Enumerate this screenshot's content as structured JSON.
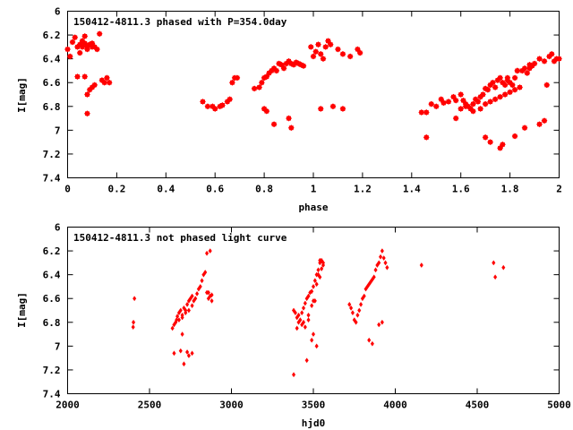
{
  "colors": {
    "points": "#ff0000",
    "frame": "#000000"
  },
  "chart_data": [
    {
      "type": "scatter",
      "title": "150412-4811.3 phased with P=354.0day",
      "xlabel": "phase",
      "ylabel": "I[mag]",
      "xlim": [
        0,
        2
      ],
      "ylim": [
        6,
        7.4
      ],
      "y_inverted": true,
      "marker": "star",
      "xticks": [
        "0",
        "0.2",
        "0.4",
        "0.6",
        "0.8",
        "1",
        "1.2",
        "1.4",
        "1.6",
        "1.8",
        "2"
      ],
      "yticks": [
        "6",
        "6.2",
        "6.4",
        "6.6",
        "6.8",
        "7",
        "7.2",
        "7.4"
      ],
      "series": [
        {
          "x": [
            0.0,
            0.01,
            0.02,
            0.03,
            0.04,
            0.05,
            0.05,
            0.06,
            0.06,
            0.07,
            0.07,
            0.08,
            0.08,
            0.09,
            0.1,
            0.1,
            0.11,
            0.12,
            0.13,
            0.14,
            0.15,
            0.16,
            0.17,
            0.08,
            0.09,
            0.1,
            0.11,
            0.04,
            0.07,
            0.08,
            0.55,
            0.57,
            0.59,
            0.6,
            0.62,
            0.63,
            0.65,
            0.66,
            0.67,
            0.68,
            0.69,
            0.76,
            0.78,
            0.79,
            0.8,
            0.81,
            0.82,
            0.83,
            0.84,
            0.85,
            0.86,
            0.87,
            0.88,
            0.89,
            0.9,
            0.91,
            0.92,
            0.93,
            0.94,
            0.95,
            0.96,
            0.8,
            0.81,
            0.84,
            0.9,
            0.91,
            0.99,
            1.0,
            1.01,
            1.02,
            1.03,
            1.04,
            1.05,
            1.06,
            1.07,
            1.1,
            1.12,
            1.15,
            1.18,
            1.19,
            1.03,
            1.08,
            1.12,
            1.44,
            1.46,
            1.48,
            1.5,
            1.52,
            1.53,
            1.55,
            1.57,
            1.58,
            1.6,
            1.61,
            1.62,
            1.63,
            1.64,
            1.65,
            1.66,
            1.67,
            1.68,
            1.69,
            1.7,
            1.71,
            1.72,
            1.73,
            1.74,
            1.75,
            1.76,
            1.77,
            1.78,
            1.79,
            1.8,
            1.81,
            1.82,
            1.83,
            1.85,
            1.86,
            1.87,
            1.88,
            1.89,
            1.9,
            1.92,
            1.94,
            1.96,
            1.97,
            1.98,
            1.99,
            2.0,
            1.6,
            1.62,
            1.65,
            1.68,
            1.7,
            1.72,
            1.74,
            1.76,
            1.78,
            1.8,
            1.82,
            1.84,
            1.46,
            1.58,
            1.7,
            1.72,
            1.76,
            1.77,
            1.82,
            1.86,
            1.92,
            1.94,
            1.95,
            1.79,
            1.83,
            1.88
          ],
          "y": [
            6.32,
            6.38,
            6.26,
            6.22,
            6.3,
            6.35,
            6.28,
            6.3,
            6.25,
            6.27,
            6.21,
            6.3,
            6.32,
            6.28,
            6.3,
            6.27,
            6.3,
            6.32,
            6.19,
            6.58,
            6.6,
            6.56,
            6.6,
            6.7,
            6.66,
            6.64,
            6.62,
            6.55,
            6.55,
            6.86,
            6.76,
            6.8,
            6.8,
            6.82,
            6.8,
            6.79,
            6.76,
            6.74,
            6.6,
            6.56,
            6.56,
            6.65,
            6.64,
            6.6,
            6.56,
            6.55,
            6.52,
            6.5,
            6.48,
            6.5,
            6.44,
            6.45,
            6.48,
            6.44,
            6.42,
            6.44,
            6.45,
            6.43,
            6.44,
            6.45,
            6.46,
            6.82,
            6.84,
            6.95,
            6.9,
            6.98,
            6.3,
            6.38,
            6.34,
            6.28,
            6.36,
            6.4,
            6.3,
            6.25,
            6.28,
            6.32,
            6.36,
            6.38,
            6.32,
            6.35,
            6.82,
            6.8,
            6.82,
            6.85,
            7.06,
            6.78,
            6.8,
            6.74,
            6.77,
            6.76,
            6.72,
            6.75,
            6.7,
            6.75,
            6.78,
            6.8,
            6.82,
            6.78,
            6.74,
            6.76,
            6.72,
            6.7,
            6.65,
            6.66,
            6.62,
            6.6,
            6.64,
            6.58,
            6.56,
            6.6,
            6.62,
            6.58,
            6.6,
            6.62,
            6.56,
            6.5,
            6.5,
            6.48,
            6.52,
            6.45,
            6.46,
            6.44,
            6.4,
            6.42,
            6.38,
            6.36,
            6.42,
            6.4,
            6.4,
            6.82,
            6.8,
            6.84,
            6.82,
            6.78,
            6.76,
            6.74,
            6.72,
            6.7,
            6.68,
            6.66,
            6.64,
            6.85,
            6.9,
            7.06,
            7.1,
            7.15,
            7.12,
            7.05,
            6.98,
            6.95,
            6.92,
            6.62,
            6.56,
            6.5,
            6.48
          ]
        }
      ]
    },
    {
      "type": "scatter",
      "title": "150412-4811.3 not phased light curve",
      "xlabel": "hjd0",
      "ylabel": "I[mag]",
      "xlim": [
        2000,
        5000
      ],
      "ylim": [
        6,
        7.4
      ],
      "y_inverted": true,
      "marker": "diamond",
      "xticks": [
        "2000",
        "2500",
        "3000",
        "3500",
        "4000",
        "4500",
        "5000"
      ],
      "yticks": [
        "6",
        "6.2",
        "6.4",
        "6.6",
        "6.8",
        "7",
        "7.2",
        "7.4"
      ],
      "series": [
        {
          "x": [
            2400,
            2402,
            2408,
            2640,
            2650,
            2660,
            2665,
            2670,
            2680,
            2690,
            2700,
            2710,
            2720,
            2730,
            2740,
            2750,
            2760,
            2770,
            2680,
            2700,
            2720,
            2740,
            2760,
            2780,
            2790,
            2800,
            2810,
            2820,
            2830,
            2840,
            2850,
            2860,
            2870,
            2880,
            2850,
            2870,
            2700,
            2730,
            2740,
            2760,
            2650,
            2690,
            2710,
            2860,
            2880,
            3380,
            3390,
            3400,
            3410,
            3420,
            3430,
            3440,
            3450,
            3460,
            3470,
            3480,
            3490,
            3500,
            3510,
            3520,
            3530,
            3540,
            3550,
            3560,
            3410,
            3430,
            3450,
            3470,
            3490,
            3510,
            3530,
            3550,
            3500,
            3520,
            3380,
            3460,
            3490,
            3540,
            3400,
            3440,
            3470,
            3500,
            3520,
            3540,
            3560,
            3720,
            3730,
            3740,
            3750,
            3760,
            3770,
            3780,
            3790,
            3800,
            3810,
            3820,
            3830,
            3840,
            3850,
            3860,
            3870,
            3880,
            3890,
            3900,
            3910,
            3920,
            3930,
            3940,
            3950,
            3840,
            3860,
            3900,
            3920,
            4160,
            4600,
            4610,
            4660
          ],
          "y": [
            6.84,
            6.8,
            6.6,
            6.85,
            6.82,
            6.8,
            6.78,
            6.75,
            6.72,
            6.7,
            6.74,
            6.68,
            6.7,
            6.65,
            6.62,
            6.6,
            6.58,
            6.62,
            6.78,
            6.76,
            6.72,
            6.7,
            6.66,
            6.6,
            6.56,
            6.52,
            6.5,
            6.45,
            6.4,
            6.38,
            6.55,
            6.6,
            6.58,
            6.62,
            6.22,
            6.2,
            6.9,
            7.05,
            7.08,
            7.06,
            7.06,
            7.04,
            7.15,
            6.55,
            6.57,
            6.7,
            6.72,
            6.76,
            6.8,
            6.78,
            6.72,
            6.68,
            6.64,
            6.6,
            6.58,
            6.55,
            6.54,
            6.5,
            6.45,
            6.4,
            6.36,
            6.3,
            6.28,
            6.32,
            6.74,
            6.82,
            6.84,
            6.78,
            6.66,
            6.62,
            6.4,
            6.35,
            6.9,
            7.0,
            7.24,
            7.12,
            6.95,
            6.28,
            6.85,
            6.8,
            6.74,
            6.62,
            6.48,
            6.42,
            6.3,
            6.65,
            6.68,
            6.72,
            6.78,
            6.8,
            6.74,
            6.7,
            6.65,
            6.6,
            6.58,
            6.52,
            6.5,
            6.48,
            6.46,
            6.44,
            6.42,
            6.36,
            6.32,
            6.3,
            6.25,
            6.2,
            6.26,
            6.3,
            6.34,
            6.95,
            6.98,
            6.82,
            6.8,
            6.32,
            6.3,
            6.42,
            6.34
          ]
        }
      ]
    }
  ]
}
